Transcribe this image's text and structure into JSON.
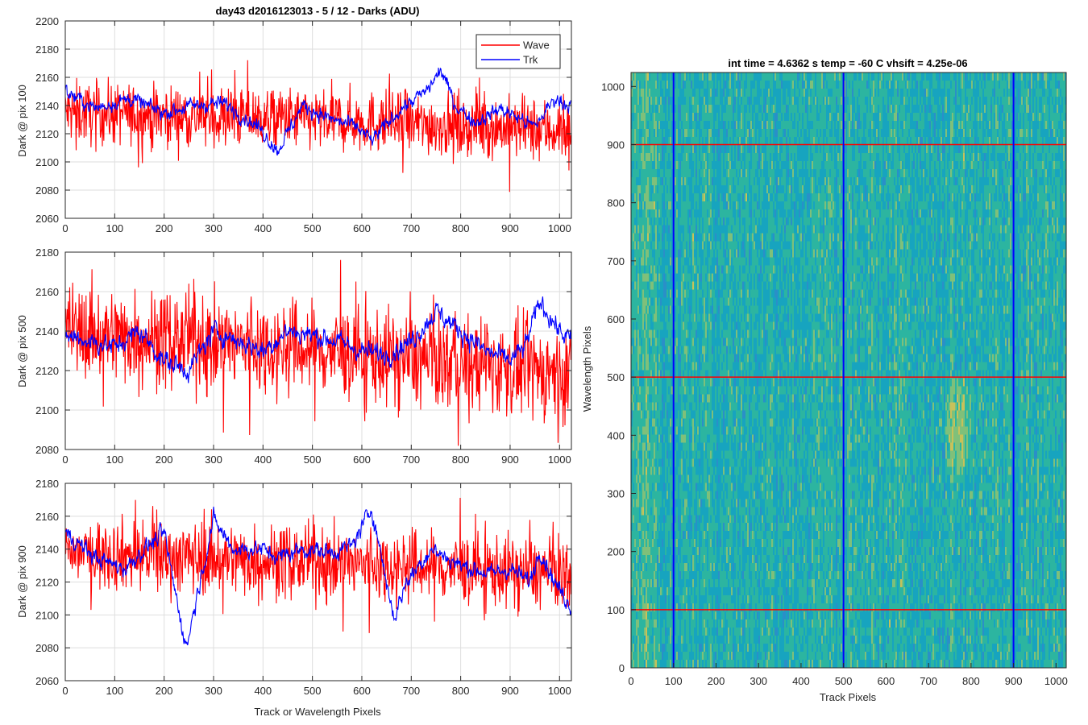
{
  "chart_data": [
    {
      "type": "line",
      "title": "day43 d2016123013 - 5 / 12 - Darks (ADU)",
      "ylabel": "Dark @ pix 100",
      "xlabel": "",
      "xlim": [
        0,
        1024
      ],
      "ylim": [
        2060,
        2200
      ],
      "xticks": [
        0,
        100,
        200,
        300,
        400,
        500,
        600,
        700,
        800,
        900,
        1000
      ],
      "yticks": [
        2060,
        2080,
        2100,
        2120,
        2140,
        2160,
        2180,
        2200
      ],
      "grid": true,
      "legend": {
        "placement": "top-right"
      },
      "series": [
        {
          "name": "Wave",
          "color": "#ff0000",
          "mean": 2130,
          "noise": 11,
          "drift": [
            [
              0,
              2135
            ],
            [
              512,
              2130
            ],
            [
              1023,
              2122
            ]
          ]
        },
        {
          "name": "Trk",
          "color": "#0000ff",
          "mean": 2138,
          "noise": 5,
          "drift": [
            [
              0,
              2150
            ],
            [
              60,
              2138
            ],
            [
              130,
              2145
            ],
            [
              200,
              2135
            ],
            [
              260,
              2140
            ],
            [
              320,
              2142
            ],
            [
              390,
              2125
            ],
            [
              430,
              2108
            ],
            [
              480,
              2140
            ],
            [
              540,
              2130
            ],
            [
              590,
              2125
            ],
            [
              620,
              2115
            ],
            [
              680,
              2138
            ],
            [
              730,
              2150
            ],
            [
              760,
              2165
            ],
            [
              790,
              2140
            ],
            [
              830,
              2128
            ],
            [
              880,
              2138
            ],
            [
              950,
              2125
            ],
            [
              990,
              2145
            ],
            [
              1023,
              2140
            ]
          ]
        }
      ]
    },
    {
      "type": "line",
      "title": "",
      "ylabel": "Dark @ pix 500",
      "xlabel": "",
      "xlim": [
        0,
        1024
      ],
      "ylim": [
        2080,
        2180
      ],
      "xticks": [
        0,
        100,
        200,
        300,
        400,
        500,
        600,
        700,
        800,
        900,
        1000
      ],
      "yticks": [
        2080,
        2100,
        2120,
        2140,
        2160,
        2180
      ],
      "grid": true,
      "series": [
        {
          "name": "Wave",
          "color": "#ff0000",
          "mean": 2130,
          "noise": 12,
          "drift": [
            [
              0,
              2140
            ],
            [
              512,
              2130
            ],
            [
              1023,
              2118
            ]
          ]
        },
        {
          "name": "Trk",
          "color": "#0000ff",
          "mean": 2135,
          "noise": 5,
          "drift": [
            [
              0,
              2138
            ],
            [
              100,
              2132
            ],
            [
              150,
              2140
            ],
            [
              200,
              2125
            ],
            [
              250,
              2120
            ],
            [
              300,
              2140
            ],
            [
              350,
              2135
            ],
            [
              400,
              2130
            ],
            [
              450,
              2140
            ],
            [
              500,
              2138
            ],
            [
              550,
              2135
            ],
            [
              600,
              2130
            ],
            [
              650,
              2128
            ],
            [
              700,
              2135
            ],
            [
              750,
              2150
            ],
            [
              800,
              2140
            ],
            [
              850,
              2130
            ],
            [
              900,
              2125
            ],
            [
              930,
              2132
            ],
            [
              960,
              2155
            ],
            [
              1000,
              2140
            ],
            [
              1023,
              2135
            ]
          ]
        }
      ]
    },
    {
      "type": "line",
      "title": "",
      "ylabel": "Dark @ pix 900",
      "xlabel": "Track or Wavelength Pixels",
      "xlim": [
        0,
        1024
      ],
      "ylim": [
        2060,
        2180
      ],
      "xticks": [
        0,
        100,
        200,
        300,
        400,
        500,
        600,
        700,
        800,
        900,
        1000
      ],
      "yticks": [
        2060,
        2080,
        2100,
        2120,
        2140,
        2160,
        2180
      ],
      "grid": true,
      "series": [
        {
          "name": "Wave",
          "color": "#ff0000",
          "mean": 2132,
          "noise": 11,
          "drift": [
            [
              0,
              2138
            ],
            [
              512,
              2132
            ],
            [
              1023,
              2125
            ]
          ]
        },
        {
          "name": "Trk",
          "color": "#0000ff",
          "mean": 2135,
          "noise": 5,
          "drift": [
            [
              0,
              2150
            ],
            [
              60,
              2135
            ],
            [
              120,
              2128
            ],
            [
              160,
              2140
            ],
            [
              200,
              2150
            ],
            [
              225,
              2110
            ],
            [
              245,
              2080
            ],
            [
              265,
              2110
            ],
            [
              300,
              2158
            ],
            [
              340,
              2140
            ],
            [
              400,
              2140
            ],
            [
              430,
              2135
            ],
            [
              480,
              2140
            ],
            [
              540,
              2138
            ],
            [
              580,
              2142
            ],
            [
              620,
              2165
            ],
            [
              650,
              2120
            ],
            [
              665,
              2098
            ],
            [
              690,
              2120
            ],
            [
              740,
              2140
            ],
            [
              800,
              2130
            ],
            [
              860,
              2125
            ],
            [
              900,
              2128
            ],
            [
              940,
              2120
            ],
            [
              960,
              2140
            ],
            [
              990,
              2120
            ],
            [
              1023,
              2105
            ]
          ]
        }
      ]
    },
    {
      "type": "heatmap",
      "title": "int time = 4.6362 s    temp = -60 C    vhsift = 4.25e-06",
      "xlabel": "Track Pixels",
      "ylabel": "Wavelength Pixels",
      "xlim": [
        0,
        1024
      ],
      "ylim": [
        0,
        1024
      ],
      "xticks": [
        0,
        100,
        200,
        300,
        400,
        500,
        600,
        700,
        800,
        900,
        1000
      ],
      "yticks": [
        0,
        100,
        200,
        300,
        400,
        500,
        600,
        700,
        800,
        900,
        1000
      ],
      "colormap": [
        "#2a8fc8",
        "#17a4bf",
        "#2cb5a0",
        "#7fc07a",
        "#c8c15a"
      ],
      "warm_spot": {
        "x": 765,
        "y": 410,
        "rx": 35,
        "ry": 110
      },
      "vlines": {
        "color": "#0000ff",
        "x": [
          100,
          500,
          900
        ]
      },
      "hlines": {
        "color": "#ff0000",
        "y": [
          100,
          500,
          900
        ]
      }
    }
  ]
}
